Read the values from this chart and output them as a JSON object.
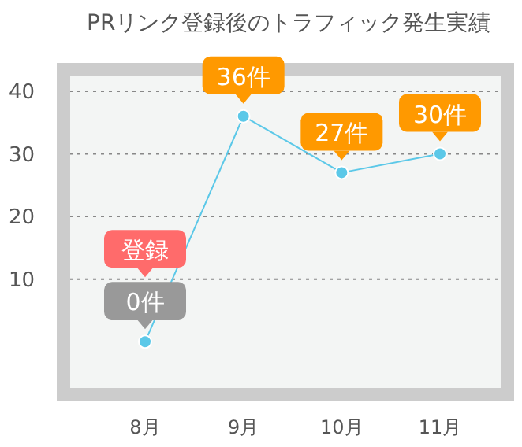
{
  "chart_data": {
    "type": "line",
    "title": "PRリンク登録後のトラフィック発生実績",
    "categories": [
      "8月",
      "9月",
      "10月",
      "11月"
    ],
    "series": [
      {
        "color": "#5bc8e8",
        "values": [
          0,
          36,
          27,
          30
        ],
        "value_labels": [
          "0件",
          "36件",
          "27件",
          "30件"
        ]
      }
    ],
    "annotations": [
      "登録"
    ],
    "ylim": [
      -7.5,
      42.5
    ],
    "yticks": [
      10,
      20,
      30,
      40
    ],
    "grid": "y",
    "marker": "circle",
    "line_style": "solid"
  }
}
